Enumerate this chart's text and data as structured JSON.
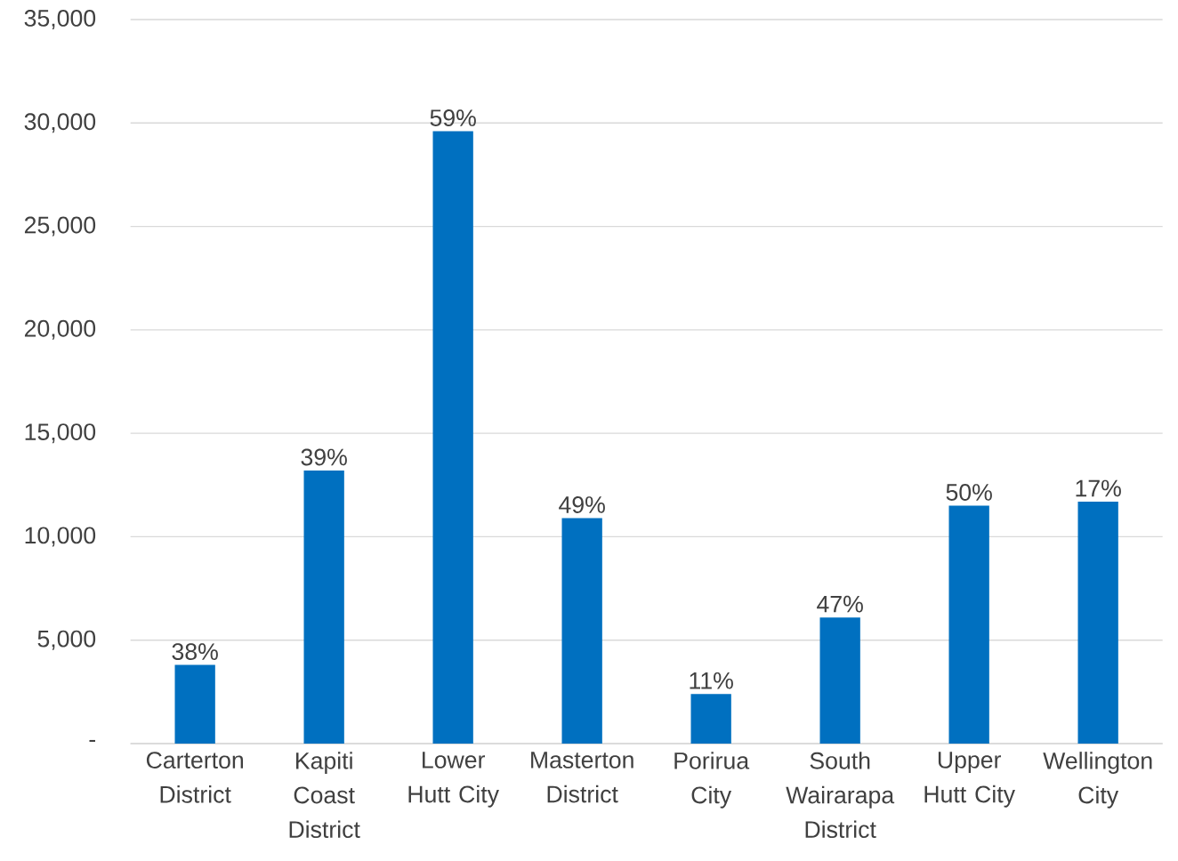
{
  "chart_data": {
    "type": "bar",
    "categories": [
      "Carterton District",
      "Kapiti Coast District",
      "Lower Hutt City",
      "Masterton District",
      "Porirua City",
      "South Wairarapa District",
      "Upper Hutt City",
      "Wellington City"
    ],
    "values": [
      3800,
      13200,
      29600,
      10900,
      2400,
      6100,
      11500,
      11700
    ],
    "annotations": [
      {
        "text": "38%",
        "x": "Carterton District",
        "y": 3800
      },
      {
        "text": "39%",
        "x": "Kapiti Coast District",
        "y": 13200
      },
      {
        "text": "59%",
        "x": "Lower Hutt City",
        "y": 29600
      },
      {
        "text": "49%",
        "x": "Masterton District",
        "y": 10900
      },
      {
        "text": "11%",
        "x": "Porirua City",
        "y": 2400
      },
      {
        "text": "47%",
        "x": "South Wairarapa District",
        "y": 6100
      },
      {
        "text": "50%",
        "x": "Upper Hutt City",
        "y": 11500
      },
      {
        "text": "17%",
        "x": "Wellington City",
        "y": 11700
      }
    ],
    "color": "#0070c0",
    "ylim": [
      0,
      35000
    ],
    "yticks": [
      {
        "value": 0,
        "label": "-"
      },
      {
        "value": 5000,
        "label": "5,000"
      },
      {
        "value": 10000,
        "label": "10,000"
      },
      {
        "value": 15000,
        "label": "15,000"
      },
      {
        "value": 20000,
        "label": "20,000"
      },
      {
        "value": 25000,
        "label": "25,000"
      },
      {
        "value": 30000,
        "label": "30,000"
      },
      {
        "value": 35000,
        "label": "35,000"
      }
    ],
    "grid": "y"
  }
}
